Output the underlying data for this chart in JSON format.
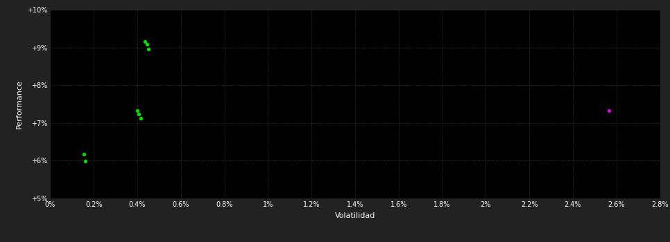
{
  "background_color": "#222222",
  "plot_bg_color": "#000000",
  "grid_color": "#444444",
  "text_color": "#ffffff",
  "xlabel": "Volatilidad",
  "ylabel": "Performance",
  "xlim": [
    0.0,
    0.028
  ],
  "ylim": [
    0.05,
    0.1
  ],
  "yticks": [
    0.05,
    0.06,
    0.07,
    0.08,
    0.09,
    0.1
  ],
  "ytick_labels": [
    "+5%",
    "+6%",
    "+7%",
    "+8%",
    "+9%",
    "+10%"
  ],
  "xticks": [
    0.0,
    0.002,
    0.004,
    0.006,
    0.008,
    0.01,
    0.012,
    0.014,
    0.016,
    0.018,
    0.02,
    0.022,
    0.024,
    0.026,
    0.028
  ],
  "xtick_labels": [
    "0%",
    "0.2%",
    "0.4%",
    "0.6%",
    "0.8%",
    "1%",
    "1.2%",
    "1.4%",
    "1.6%",
    "1.8%",
    "2%",
    "2.2%",
    "2.4%",
    "2.6%",
    "2.8%"
  ],
  "green_points": [
    [
      0.00155,
      0.0618
    ],
    [
      0.0016,
      0.0598
    ],
    [
      0.00435,
      0.0915
    ],
    [
      0.00445,
      0.0908
    ],
    [
      0.0045,
      0.0896
    ],
    [
      0.004,
      0.0733
    ],
    [
      0.00405,
      0.0723
    ],
    [
      0.00415,
      0.0713
    ]
  ],
  "magenta_points": [
    [
      0.02565,
      0.0733
    ]
  ],
  "green_color": "#00dd00",
  "magenta_color": "#dd00dd",
  "point_size": 8
}
